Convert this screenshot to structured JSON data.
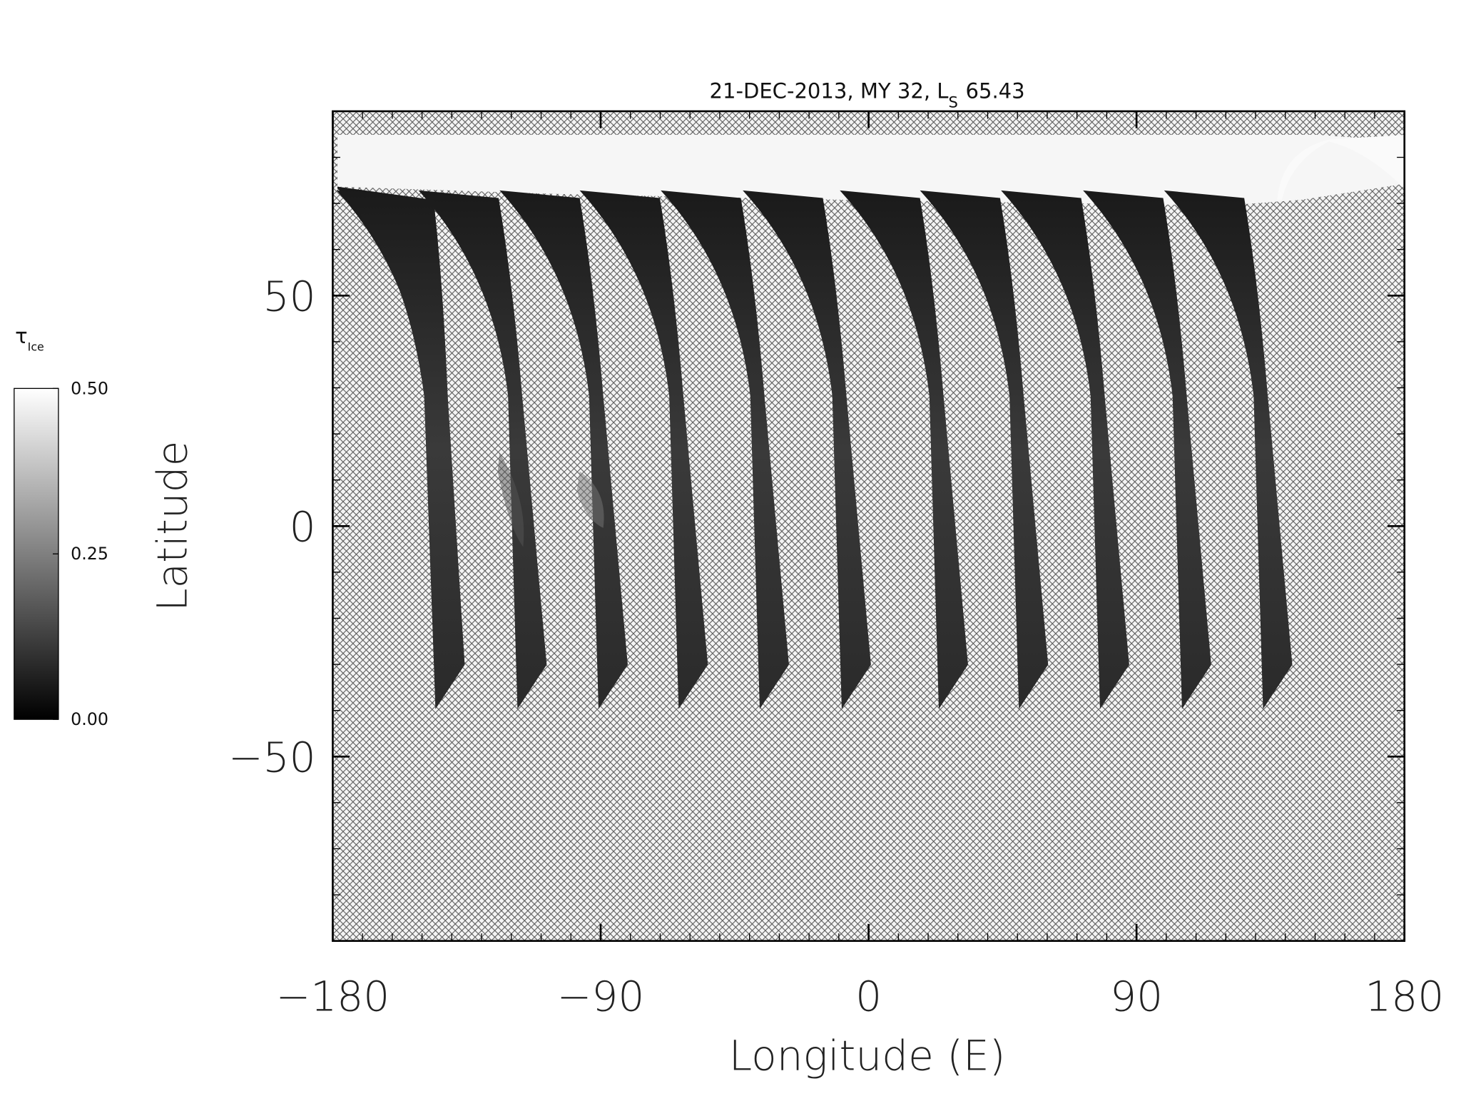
{
  "chart_data": {
    "type": "map",
    "title": {
      "main": "21-DEC-2013, MY 32,  L",
      "subscript": "S",
      "value": "65.43"
    },
    "x_label": "Longitude (E)",
    "y_label": "Latitude",
    "xlim": [
      -180,
      180
    ],
    "ylim": [
      -90,
      90
    ],
    "xticks": [
      {
        "value": -180,
        "label": "−180"
      },
      {
        "value": -90,
        "label": "−90"
      },
      0,
      90,
      180
    ],
    "yticks": [
      {
        "value": -50,
        "label": "−50"
      },
      0,
      50
    ],
    "colorbar": {
      "label": "τ",
      "label_subscript": "Ice",
      "lim": [
        0,
        0.5
      ],
      "ticks": [
        {
          "value": 0,
          "label": "0.00"
        },
        {
          "value": 0.25,
          "label": "0.25"
        },
        {
          "value": 0.5,
          "label": "0.50"
        }
      ]
    }
  }
}
